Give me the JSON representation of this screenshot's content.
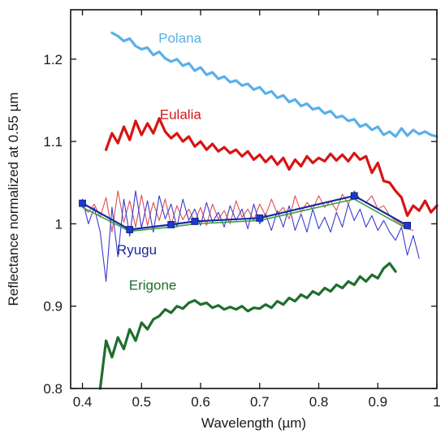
{
  "chart_data": {
    "type": "line",
    "title": "",
    "xlabel": "Wavelength (µm)",
    "ylabel": "Reflectance normalized at 0.55 µm",
    "xlim": [
      0.38,
      1.0
    ],
    "ylim": [
      0.8,
      1.26
    ],
    "x_ticks": [
      0.4,
      0.5,
      0.6,
      0.7,
      0.8,
      0.9,
      1
    ],
    "x_tick_labels": [
      "0.4",
      "0.5",
      "0.6",
      "0.7",
      "0.8",
      "0.9",
      "1"
    ],
    "y_ticks": [
      0.8,
      0.9,
      1,
      1.1,
      1.2
    ],
    "y_tick_labels": [
      "0.8",
      "0.9",
      "1",
      "1.1",
      "1.2"
    ],
    "grid": false,
    "legend": "inline labels",
    "series": [
      {
        "name": "Polana",
        "color": "#5ab0e8",
        "width": 3.2,
        "x": [
          0.45,
          0.46,
          0.47,
          0.48,
          0.49,
          0.5,
          0.51,
          0.52,
          0.53,
          0.54,
          0.55,
          0.56,
          0.57,
          0.58,
          0.59,
          0.6,
          0.61,
          0.62,
          0.63,
          0.64,
          0.65,
          0.66,
          0.67,
          0.68,
          0.69,
          0.7,
          0.71,
          0.72,
          0.73,
          0.74,
          0.75,
          0.76,
          0.77,
          0.78,
          0.79,
          0.8,
          0.81,
          0.82,
          0.83,
          0.84,
          0.85,
          0.86,
          0.87,
          0.88,
          0.89,
          0.9,
          0.91,
          0.92,
          0.93,
          0.94,
          0.95,
          0.96,
          0.97,
          0.98,
          0.99,
          1.0
        ],
        "y": [
          1.232,
          1.228,
          1.222,
          1.225,
          1.216,
          1.212,
          1.214,
          1.205,
          1.209,
          1.201,
          1.197,
          1.2,
          1.192,
          1.195,
          1.186,
          1.19,
          1.181,
          1.184,
          1.176,
          1.179,
          1.172,
          1.174,
          1.168,
          1.17,
          1.163,
          1.166,
          1.158,
          1.161,
          1.153,
          1.156,
          1.148,
          1.151,
          1.143,
          1.146,
          1.139,
          1.141,
          1.134,
          1.137,
          1.129,
          1.131,
          1.125,
          1.127,
          1.118,
          1.121,
          1.114,
          1.118,
          1.108,
          1.112,
          1.106,
          1.116,
          1.107,
          1.114,
          1.109,
          1.112,
          1.108,
          1.106
        ]
      },
      {
        "name": "Eulalia",
        "color": "#d81414",
        "width": 3.2,
        "x": [
          0.44,
          0.45,
          0.46,
          0.47,
          0.48,
          0.49,
          0.5,
          0.51,
          0.52,
          0.53,
          0.54,
          0.55,
          0.56,
          0.57,
          0.58,
          0.59,
          0.6,
          0.61,
          0.62,
          0.63,
          0.64,
          0.65,
          0.66,
          0.67,
          0.68,
          0.69,
          0.7,
          0.71,
          0.72,
          0.73,
          0.74,
          0.75,
          0.76,
          0.77,
          0.78,
          0.79,
          0.8,
          0.81,
          0.82,
          0.83,
          0.84,
          0.85,
          0.86,
          0.87,
          0.88,
          0.89,
          0.9,
          0.91,
          0.92,
          0.93,
          0.94,
          0.95,
          0.96,
          0.97,
          0.98,
          0.99,
          1.0
        ],
        "y": [
          1.09,
          1.11,
          1.098,
          1.118,
          1.102,
          1.125,
          1.108,
          1.122,
          1.11,
          1.128,
          1.112,
          1.104,
          1.11,
          1.1,
          1.106,
          1.094,
          1.1,
          1.09,
          1.097,
          1.088,
          1.093,
          1.086,
          1.09,
          1.082,
          1.088,
          1.078,
          1.084,
          1.075,
          1.082,
          1.072,
          1.08,
          1.066,
          1.078,
          1.07,
          1.082,
          1.074,
          1.08,
          1.076,
          1.085,
          1.077,
          1.084,
          1.076,
          1.086,
          1.078,
          1.082,
          1.062,
          1.074,
          1.052,
          1.05,
          1.04,
          1.032,
          1.01,
          1.022,
          1.016,
          1.028,
          1.014,
          1.022
        ]
      },
      {
        "name": "Erigone",
        "color": "#1e6e2c",
        "width": 3.2,
        "x": [
          0.43,
          0.44,
          0.45,
          0.46,
          0.47,
          0.48,
          0.49,
          0.5,
          0.51,
          0.52,
          0.53,
          0.54,
          0.55,
          0.56,
          0.57,
          0.58,
          0.59,
          0.6,
          0.61,
          0.62,
          0.63,
          0.64,
          0.65,
          0.66,
          0.67,
          0.68,
          0.69,
          0.7,
          0.71,
          0.72,
          0.73,
          0.74,
          0.75,
          0.76,
          0.77,
          0.78,
          0.79,
          0.8,
          0.81,
          0.82,
          0.83,
          0.84,
          0.85,
          0.86,
          0.87,
          0.88,
          0.89,
          0.9,
          0.91,
          0.92,
          0.93
        ],
        "y": [
          0.8,
          0.858,
          0.838,
          0.862,
          0.848,
          0.872,
          0.858,
          0.88,
          0.872,
          0.884,
          0.888,
          0.896,
          0.892,
          0.9,
          0.897,
          0.904,
          0.907,
          0.902,
          0.904,
          0.898,
          0.901,
          0.896,
          0.899,
          0.896,
          0.9,
          0.894,
          0.898,
          0.897,
          0.902,
          0.898,
          0.906,
          0.902,
          0.91,
          0.906,
          0.914,
          0.91,
          0.918,
          0.914,
          0.922,
          0.918,
          0.926,
          0.922,
          0.93,
          0.926,
          0.936,
          0.93,
          0.938,
          0.934,
          0.946,
          0.952,
          0.942
        ]
      },
      {
        "name": "Ryugu (thin red)",
        "color": "#e05050",
        "width": 1.1,
        "x": [
          0.4,
          0.41,
          0.42,
          0.43,
          0.44,
          0.45,
          0.46,
          0.47,
          0.48,
          0.49,
          0.5,
          0.51,
          0.52,
          0.53,
          0.54,
          0.55,
          0.56,
          0.57,
          0.58,
          0.59,
          0.6,
          0.61,
          0.62,
          0.63,
          0.64,
          0.65,
          0.66,
          0.67,
          0.68,
          0.69,
          0.7,
          0.71,
          0.72,
          0.73,
          0.74,
          0.75,
          0.76,
          0.77,
          0.78,
          0.79,
          0.8,
          0.81,
          0.82,
          0.83,
          0.84,
          0.85,
          0.86,
          0.87,
          0.88,
          0.89,
          0.9,
          0.91,
          0.92,
          0.93,
          0.94,
          0.95,
          0.96
        ],
        "y": [
          1.02,
          1.014,
          1.024,
          1.008,
          1.032,
          0.99,
          1.04,
          1.002,
          1.028,
          0.996,
          1.035,
          0.998,
          1.026,
          1.004,
          1.03,
          0.999,
          1.022,
          1.005,
          1.018,
          1.002,
          1.02,
          0.998,
          1.024,
          1.006,
          1.016,
          1.0,
          1.028,
          1.008,
          1.018,
          1.004,
          1.024,
          1.01,
          1.03,
          1.012,
          1.02,
          1.006,
          1.034,
          1.014,
          1.026,
          1.018,
          1.034,
          1.02,
          1.028,
          1.016,
          1.036,
          1.024,
          1.04,
          1.03,
          1.026,
          1.034,
          1.018,
          1.022,
          1.01,
          1.004,
          1.0,
          0.994,
          0.992
        ]
      },
      {
        "name": "Ryugu (thin blue)",
        "color": "#3a3ad0",
        "width": 1.1,
        "x": [
          0.4,
          0.41,
          0.42,
          0.43,
          0.44,
          0.45,
          0.46,
          0.47,
          0.48,
          0.49,
          0.5,
          0.51,
          0.52,
          0.53,
          0.54,
          0.55,
          0.56,
          0.57,
          0.58,
          0.59,
          0.6,
          0.61,
          0.62,
          0.63,
          0.64,
          0.65,
          0.66,
          0.67,
          0.68,
          0.69,
          0.7,
          0.71,
          0.72,
          0.73,
          0.74,
          0.75,
          0.76,
          0.77,
          0.78,
          0.79,
          0.8,
          0.81,
          0.82,
          0.83,
          0.84,
          0.85,
          0.86,
          0.87,
          0.88,
          0.89,
          0.9,
          0.91,
          0.92,
          0.93,
          0.94,
          0.95,
          0.96,
          0.97
        ],
        "y": [
          1.03,
          1.0,
          1.02,
          0.99,
          0.93,
          1.02,
          0.96,
          1.03,
          0.985,
          1.04,
          0.995,
          1.028,
          0.99,
          1.034,
          1.006,
          1.024,
          0.996,
          1.03,
          1.004,
          1.018,
          0.998,
          1.026,
          1.002,
          1.014,
          0.996,
          1.022,
          1.004,
          1.018,
          0.994,
          1.024,
          1.0,
          1.012,
          0.992,
          1.016,
          0.996,
          1.022,
          0.992,
          1.012,
          0.99,
          1.018,
          0.994,
          1.008,
          0.99,
          1.014,
          0.996,
          1.024,
          1.004,
          1.018,
          0.996,
          1.01,
          0.992,
          1.004,
          0.99,
          0.98,
          0.996,
          0.962,
          0.986,
          0.958
        ]
      },
      {
        "name": "Ryugu (green)",
        "color": "#3aa04a",
        "width": 1.6,
        "x": [
          0.4,
          0.48,
          0.55,
          0.59,
          0.7,
          0.86,
          0.95
        ],
        "y": [
          1.02,
          0.991,
          0.996,
          1.0,
          1.004,
          1.03,
          0.994
        ]
      },
      {
        "name": "Ryugu",
        "color": "#1a2a9a",
        "width": 2.2,
        "markers": true,
        "x": [
          0.4,
          0.48,
          0.55,
          0.59,
          0.7,
          0.86,
          0.95
        ],
        "y": [
          1.025,
          0.993,
          0.999,
          1.003,
          1.007,
          1.034,
          0.998
        ]
      }
    ],
    "labels": [
      {
        "text": "Polana",
        "color": "#5ab0e8",
        "x": 0.565,
        "y": 1.22
      },
      {
        "text": "Eulalia",
        "color": "#d81414",
        "x": 0.566,
        "y": 1.127
      },
      {
        "text": "Ryugu",
        "color": "#1a2a9a",
        "x": 0.492,
        "y": 0.963
      },
      {
        "text": "Erigone",
        "color": "#1e6e2c",
        "x": 0.519,
        "y": 0.92
      }
    ]
  }
}
